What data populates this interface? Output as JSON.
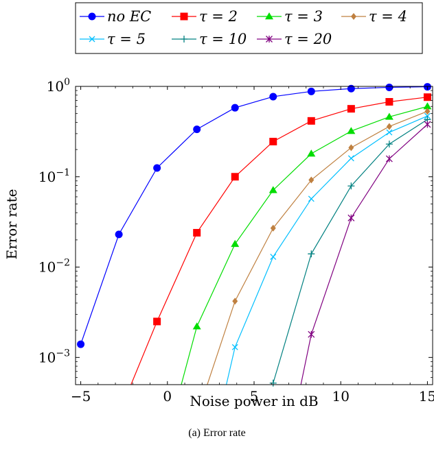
{
  "chart_data": {
    "type": "line",
    "caption": "(a) Error rate",
    "xlabel": "Noise power in dB",
    "ylabel": "Error rate",
    "xlim": [
      -5.3,
      15.3
    ],
    "ylim": [
      0.0005,
      1.0
    ],
    "yscale": "log",
    "xticks": [
      -5,
      0,
      5,
      10,
      15
    ],
    "xtick_labels": [
      "−5",
      "0",
      "5",
      "10",
      "15"
    ],
    "yticks": [
      {
        "value": 0.001,
        "base": "10",
        "exp": "−3"
      },
      {
        "value": 0.01,
        "base": "10",
        "exp": "−2"
      },
      {
        "value": 0.1,
        "base": "10",
        "exp": "−1"
      },
      {
        "value": 1.0,
        "base": "10",
        "exp": "0"
      }
    ],
    "grid": false,
    "legend_position": "top",
    "series": [
      {
        "name": "no EC",
        "color": "#0000ff",
        "marker": "circle",
        "x": [
          -5,
          -2.8,
          -0.6,
          1.7,
          3.9,
          6.1,
          8.3,
          10.6,
          12.8,
          15
        ],
        "y": [
          0.0014,
          0.023,
          0.125,
          0.335,
          0.58,
          0.77,
          0.88,
          0.945,
          0.975,
          0.99
        ]
      },
      {
        "name": "τ = 2",
        "color": "#ff0000",
        "marker": "square",
        "x": [
          -2.1,
          -0.6,
          1.7,
          3.9,
          6.1,
          8.3,
          10.6,
          12.8,
          15
        ],
        "y": [
          0.0005,
          0.0025,
          0.024,
          0.1,
          0.245,
          0.415,
          0.565,
          0.675,
          0.76
        ]
      },
      {
        "name": "τ = 3",
        "color": "#00dd00",
        "marker": "triangle",
        "x": [
          0.8,
          1.7,
          3.9,
          6.1,
          8.3,
          10.6,
          12.8,
          15
        ],
        "y": [
          0.0005,
          0.0022,
          0.018,
          0.071,
          0.18,
          0.32,
          0.46,
          0.6
        ]
      },
      {
        "name": "τ = 4",
        "color": "#bf8040",
        "marker": "diamond",
        "x": [
          2.3,
          3.9,
          6.1,
          8.3,
          10.6,
          12.8,
          15
        ],
        "y": [
          0.0005,
          0.0042,
          0.027,
          0.092,
          0.21,
          0.36,
          0.53
        ]
      },
      {
        "name": "τ = 5",
        "color": "#00bfff",
        "marker": "cross",
        "x": [
          3.4,
          3.9,
          6.1,
          8.3,
          10.6,
          12.8,
          15
        ],
        "y": [
          0.0005,
          0.0013,
          0.013,
          0.057,
          0.16,
          0.31,
          0.47
        ]
      },
      {
        "name": "τ = 10",
        "color": "#008080",
        "marker": "plus",
        "x": [
          6.1,
          8.3,
          10.6,
          12.8,
          15
        ],
        "y": [
          0.00052,
          0.014,
          0.079,
          0.23,
          0.43
        ]
      },
      {
        "name": "τ = 20",
        "color": "#800080",
        "marker": "star",
        "x": [
          7.7,
          8.3,
          10.6,
          12.8,
          15
        ],
        "y": [
          0.0005,
          0.0018,
          0.035,
          0.158,
          0.38
        ]
      }
    ]
  }
}
